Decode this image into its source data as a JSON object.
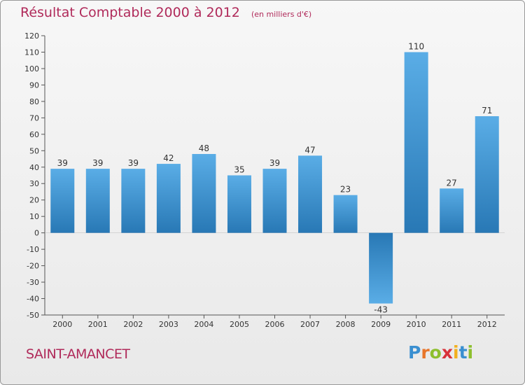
{
  "chart_data": {
    "type": "bar",
    "title": "Résultat Comptable 2000 à 2012",
    "subtitle": "(en milliers d'€)",
    "categories": [
      "2000",
      "2001",
      "2002",
      "2003",
      "2004",
      "2005",
      "2006",
      "2007",
      "2008",
      "2009",
      "2010",
      "2011",
      "2012"
    ],
    "values": [
      39,
      39,
      39,
      42,
      48,
      35,
      39,
      47,
      23,
      -43,
      110,
      27,
      71
    ],
    "ylim": [
      -50,
      120
    ],
    "ytick_step": 10,
    "grid": false,
    "colors": {
      "bar_light": "#5aade6",
      "bar_dark": "#2878b5",
      "title": "#b02a5a"
    }
  },
  "footer": {
    "place": "SAINT-AMANCET",
    "logo_letters": [
      {
        "char": "P",
        "color": "#3a8fd0"
      },
      {
        "char": "r",
        "color": "#e8762b"
      },
      {
        "char": "o",
        "color": "#8dbf2e"
      },
      {
        "char": "x",
        "color": "#d8323a"
      },
      {
        "char": "i",
        "color": "#f2b01e"
      },
      {
        "char": "t",
        "color": "#3a8fd0"
      },
      {
        "char": "i",
        "color": "#8dbf2e"
      }
    ]
  }
}
